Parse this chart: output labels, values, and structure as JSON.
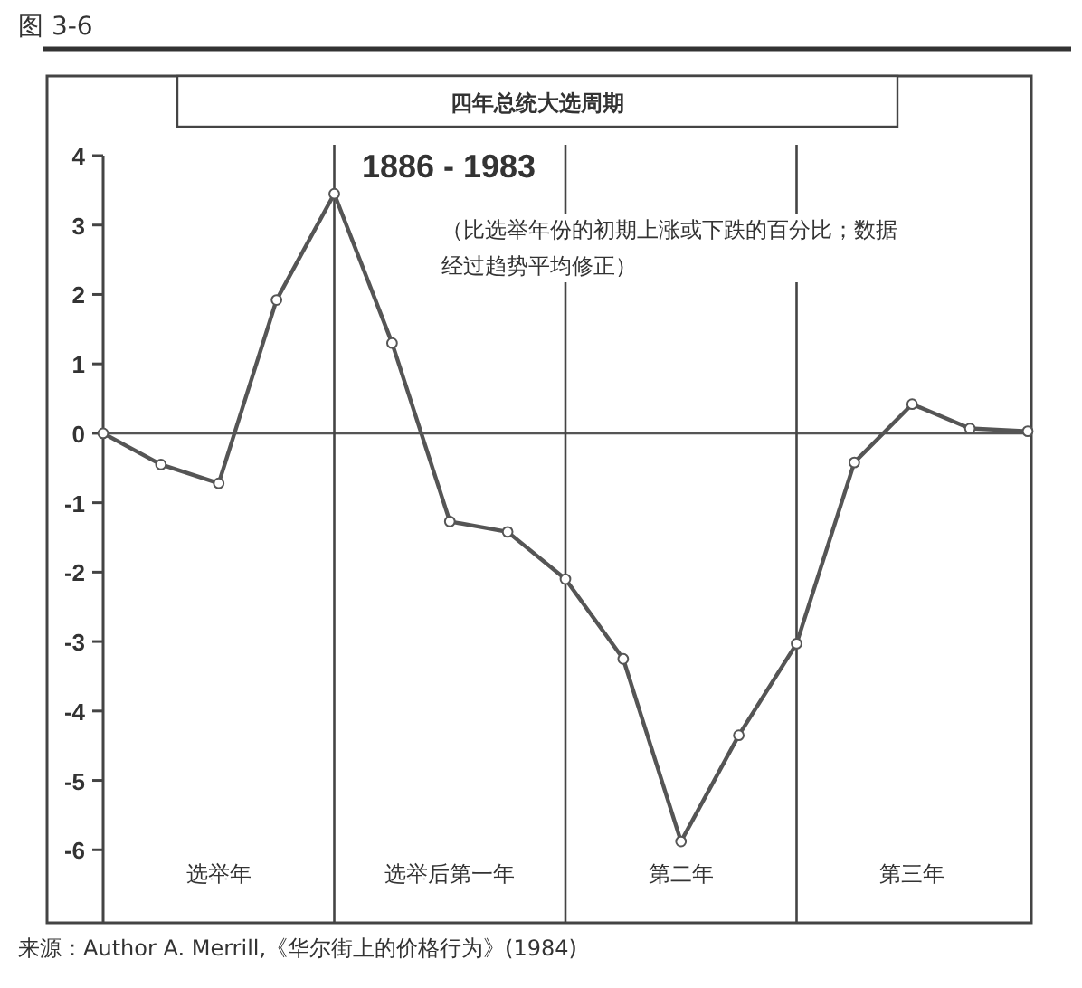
{
  "chart_data": {
    "type": "line",
    "title": "四年总统大选周期",
    "subtitle": "1886 - 1983",
    "annotations": [
      "图 3-6",
      "（比选举年份的初期上涨或下跌的百分比；数据经过趋势平均修正）",
      "来源：Author A. Merrill,《华尔街上的价格行为》(1984)"
    ],
    "categories": [
      null,
      null,
      "选举年",
      null,
      null,
      null,
      "选举后第一年",
      null,
      null,
      null,
      "第二年",
      null,
      null,
      null,
      "第三年",
      null,
      null
    ],
    "series": [
      {
        "color": "#555555",
        "values": [
          0,
          -0.45,
          -0.72,
          1.92,
          3.45,
          1.3,
          -1.27,
          -1.42,
          -2.1,
          -3.25,
          -5.88,
          -4.35,
          -3.03,
          -0.42,
          0.42,
          0.07,
          0.03
        ]
      }
    ],
    "ylim": [
      -7,
      4
    ],
    "yticks": [
      -6,
      -5,
      -4,
      -3,
      -2,
      -1,
      0,
      1,
      2,
      3,
      4
    ],
    "ref_lines": [
      {
        "axis": "y",
        "value": 0,
        "color": "#555555"
      }
    ],
    "marker": "circle",
    "line_style": "solid",
    "grid": "x"
  }
}
